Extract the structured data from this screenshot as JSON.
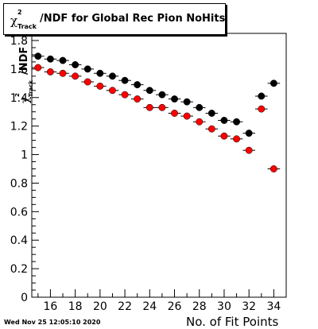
{
  "title": {
    "symbol": "χ",
    "superscript": "2",
    "subscript": "Track",
    "text": "/NDF for Global Rec Pion NoHits"
  },
  "ylabel": {
    "symbol": "χ",
    "superscript": "2",
    "subscript": "Track",
    "text": "/NDF"
  },
  "footer": "Wed Nov 25 12:05:10 2020",
  "chart_data": {
    "type": "scatter",
    "title": "χ²_Track/NDF for Global Rec Pion NoHits",
    "xlabel": "No. of Fit Points",
    "ylabel": "χ²_Track/NDF",
    "xlim": [
      14.5,
      35
    ],
    "ylim": [
      0,
      1.85
    ],
    "x_ticks": [
      16,
      18,
      20,
      22,
      24,
      26,
      28,
      30,
      32,
      34
    ],
    "y_ticks": [
      0,
      0.2,
      0.4,
      0.6,
      0.8,
      1,
      1.2,
      1.4,
      1.6,
      1.8
    ],
    "series": [
      {
        "color": "#000000",
        "x": [
          15,
          16,
          17,
          18,
          19,
          20,
          21,
          22,
          23,
          24,
          25,
          26,
          27,
          28,
          29,
          30,
          31,
          32,
          33,
          34
        ],
        "y": [
          1.69,
          1.67,
          1.66,
          1.63,
          1.6,
          1.57,
          1.55,
          1.52,
          1.49,
          1.45,
          1.42,
          1.39,
          1.37,
          1.33,
          1.29,
          1.24,
          1.23,
          1.15,
          1.41,
          1.5
        ]
      },
      {
        "color": "#ff0000",
        "x": [
          15,
          16,
          17,
          18,
          19,
          20,
          21,
          22,
          23,
          24,
          25,
          26,
          27,
          28,
          29,
          30,
          31,
          32,
          33,
          34
        ],
        "y": [
          1.61,
          1.58,
          1.57,
          1.55,
          1.51,
          1.48,
          1.45,
          1.42,
          1.39,
          1.33,
          1.33,
          1.29,
          1.27,
          1.23,
          1.18,
          1.13,
          1.11,
          1.03,
          1.32,
          0.9
        ]
      }
    ],
    "grid": false,
    "legend": "none"
  }
}
